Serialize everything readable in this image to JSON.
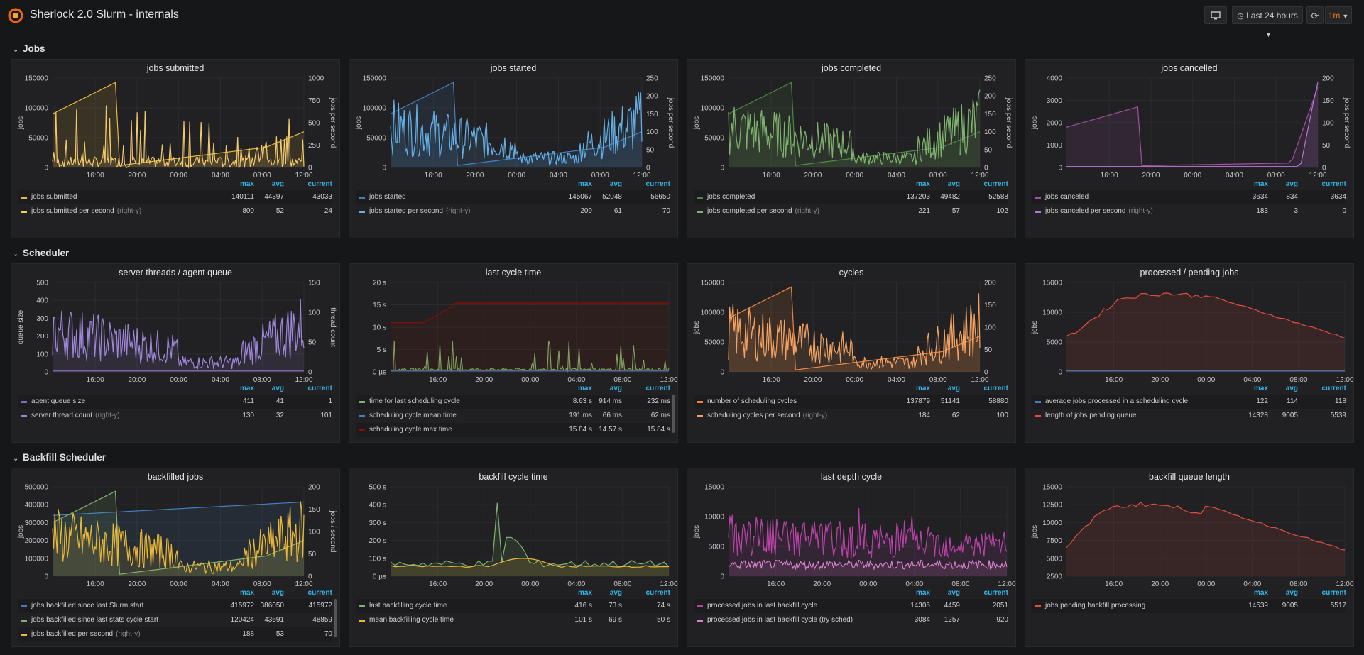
{
  "header": {
    "title": "Sherlock 2.0 Slurm - internals",
    "time_range_label": "Last 24 hours",
    "refresh_interval": "1m",
    "tv_icon": "monitor-icon",
    "refresh_icon": "refresh-icon"
  },
  "colors": {
    "yellow": "#eab839",
    "yellow2": "#f2c96d",
    "blue": "#447ebc",
    "lightblue": "#64b0e6",
    "green": "#508642",
    "lightgreen": "#7eb26d",
    "purple": "#a04fa3",
    "violet": "#b877d9",
    "lavender": "#9e86d8",
    "orange": "#ef843c",
    "red": "#e24d42",
    "darkred": "#890f02",
    "magenta": "#ba43a9",
    "pink": "#d683ce"
  },
  "legend_headers": {
    "max": "max",
    "avg": "avg",
    "current": "current"
  },
  "rows": [
    {
      "title": "Jobs"
    },
    {
      "title": "Scheduler"
    },
    {
      "title": "Backfill Scheduler"
    }
  ],
  "panels": [
    {
      "title": "jobs submitted",
      "chart_data": {
        "type": "line",
        "x_ticks": [
          "16:00",
          "20:00",
          "00:00",
          "04:00",
          "08:00",
          "12:00"
        ],
        "y_left": {
          "label": "jobs",
          "ticks": [
            "0",
            "50000",
            "100000",
            "150000"
          ],
          "range": [
            0,
            150000
          ]
        },
        "y_right": {
          "label": "jobs per second",
          "ticks": [
            "0",
            "250",
            "500",
            "750",
            "1000"
          ],
          "range": [
            0,
            1000
          ]
        },
        "series": [
          {
            "name": "jobs submitted",
            "color": "#eab839",
            "axis": "left",
            "shape": "ramp-then-low-rise",
            "max": 140111,
            "current": 43033
          },
          {
            "name": "jobs submitted per second",
            "color": "#f2c96d",
            "axis": "right",
            "shape": "spiky-sparse",
            "max": 800,
            "current": 24
          }
        ]
      },
      "legend": [
        {
          "label": "jobs submitted",
          "right_y": false,
          "max": "140111",
          "avg": "44397",
          "current": "43033"
        },
        {
          "label": "jobs submitted per second",
          "right_y": true,
          "max": "800",
          "avg": "52",
          "current": "24"
        }
      ]
    },
    {
      "title": "jobs started",
      "chart_data": {
        "type": "line",
        "x_ticks": [
          "16:00",
          "20:00",
          "00:00",
          "04:00",
          "08:00",
          "12:00"
        ],
        "y_left": {
          "label": "jobs",
          "ticks": [
            "0",
            "50000",
            "100000",
            "150000"
          ],
          "range": [
            0,
            150000
          ]
        },
        "y_right": {
          "label": "jobs per second",
          "ticks": [
            "0",
            "50",
            "100",
            "150",
            "200",
            "250"
          ],
          "range": [
            0,
            250
          ]
        },
        "series": [
          {
            "name": "jobs started",
            "color": "#447ebc",
            "axis": "left",
            "shape": "ramp-then-low-rise",
            "max": 145067,
            "current": 56650
          },
          {
            "name": "jobs started per second",
            "color": "#64b0e6",
            "axis": "right",
            "shape": "noisy-dense",
            "max": 209,
            "current": 70
          }
        ]
      },
      "legend": [
        {
          "label": "jobs started",
          "right_y": false,
          "max": "145067",
          "avg": "52048",
          "current": "56650"
        },
        {
          "label": "jobs started per second",
          "right_y": true,
          "max": "209",
          "avg": "61",
          "current": "70"
        }
      ]
    },
    {
      "title": "jobs completed",
      "chart_data": {
        "type": "line",
        "x_ticks": [
          "16:00",
          "20:00",
          "00:00",
          "04:00",
          "08:00",
          "12:00"
        ],
        "y_left": {
          "label": "jobs",
          "ticks": [
            "0",
            "50000",
            "100000",
            "150000"
          ],
          "range": [
            0,
            150000
          ]
        },
        "y_right": {
          "label": "jobs per second",
          "ticks": [
            "0",
            "50",
            "100",
            "150",
            "200",
            "250"
          ],
          "range": [
            0,
            250
          ]
        },
        "series": [
          {
            "name": "jobs completed",
            "color": "#508642",
            "axis": "left",
            "shape": "ramp-then-low-rise",
            "max": 137203,
            "current": 52588
          },
          {
            "name": "jobs completed per second",
            "color": "#7eb26d",
            "axis": "right",
            "shape": "noisy-dense",
            "max": 221,
            "current": 102
          }
        ]
      },
      "legend": [
        {
          "label": "jobs completed",
          "right_y": false,
          "max": "137203",
          "avg": "49482",
          "current": "52588"
        },
        {
          "label": "jobs completed per second",
          "right_y": true,
          "max": "221",
          "avg": "57",
          "current": "102"
        }
      ]
    },
    {
      "title": "jobs cancelled",
      "chart_data": {
        "type": "line",
        "x_ticks": [
          "16:00",
          "20:00",
          "00:00",
          "04:00",
          "08:00",
          "12:00"
        ],
        "y_left": {
          "label": "jobs",
          "ticks": [
            "0",
            "1000",
            "2000",
            "3000",
            "4000"
          ],
          "range": [
            0,
            4000
          ]
        },
        "y_right": {
          "label": "jobs per second",
          "ticks": [
            "0",
            "50",
            "100",
            "150",
            "200"
          ],
          "range": [
            0,
            200
          ]
        },
        "series": [
          {
            "name": "jobs canceled",
            "color": "#a04fa3",
            "axis": "left",
            "shape": "ramp-then-spike-end",
            "max": 3634,
            "current": 3634
          },
          {
            "name": "jobs canceled per second",
            "color": "#b877d9",
            "axis": "right",
            "shape": "flat-spike-end",
            "max": 183,
            "current": 0
          }
        ]
      },
      "legend": [
        {
          "label": "jobs canceled",
          "right_y": false,
          "max": "3634",
          "avg": "834",
          "current": "3634"
        },
        {
          "label": "jobs canceled per second",
          "right_y": true,
          "max": "183",
          "avg": "3",
          "current": "0"
        }
      ]
    },
    {
      "title": "server threads / agent queue",
      "chart_data": {
        "type": "line",
        "x_ticks": [
          "16:00",
          "20:00",
          "00:00",
          "04:00",
          "08:00",
          "12:00"
        ],
        "y_left": {
          "label": "queue size",
          "ticks": [
            "0",
            "100",
            "200",
            "300",
            "400",
            "500"
          ],
          "range": [
            0,
            500
          ]
        },
        "y_right": {
          "label": "thread count",
          "ticks": [
            "0",
            "50",
            "100",
            "150"
          ],
          "range": [
            0,
            150
          ]
        },
        "series": [
          {
            "name": "agent queue size",
            "color": "#806eb7",
            "axis": "left",
            "shape": "flat-low",
            "max": 411,
            "current": 1
          },
          {
            "name": "server thread count",
            "color": "#9e86d8",
            "axis": "right",
            "shape": "noisy-dense",
            "max": 130,
            "current": 101
          }
        ]
      },
      "legend": [
        {
          "label": "agent queue size",
          "right_y": false,
          "max": "411",
          "avg": "41",
          "current": "1"
        },
        {
          "label": "server thread count",
          "right_y": true,
          "max": "130",
          "avg": "32",
          "current": "101"
        }
      ]
    },
    {
      "title": "last cycle time",
      "chart_data": {
        "type": "line",
        "x_ticks": [
          "16:00",
          "20:00",
          "00:00",
          "04:00",
          "08:00",
          "12:00"
        ],
        "y_left": {
          "label": "",
          "ticks": [
            "0 µs",
            "5 s",
            "10 s",
            "15 s",
            "20 s"
          ],
          "range": [
            0,
            20
          ]
        },
        "series": [
          {
            "name": "time for last scheduling cycle",
            "color": "#7eb26d",
            "axis": "left",
            "shape": "low-spiky",
            "max": 8.63,
            "current": 0.232
          },
          {
            "name": "scheduling cycle mean time",
            "color": "#447ebc",
            "axis": "left",
            "shape": "flat-low",
            "max": 0.191,
            "current": 0.062
          },
          {
            "name": "scheduling cycle max time",
            "color": "#890f02",
            "axis": "left",
            "shape": "step-up",
            "max": 15.84,
            "current": 15.84
          }
        ]
      },
      "legend": [
        {
          "label": "time for last scheduling cycle",
          "right_y": false,
          "max": "8.63 s",
          "avg": "914 ms",
          "current": "232 ms"
        },
        {
          "label": "scheduling cycle mean time",
          "right_y": false,
          "max": "191 ms",
          "avg": "66 ms",
          "current": "62 ms"
        },
        {
          "label": "scheduling cycle max time",
          "right_y": false,
          "max": "15.84 s",
          "avg": "14.57 s",
          "current": "15.84 s"
        }
      ]
    },
    {
      "title": "cycles",
      "chart_data": {
        "type": "line",
        "x_ticks": [
          "16:00",
          "20:00",
          "00:00",
          "04:00",
          "08:00",
          "12:00"
        ],
        "y_left": {
          "label": "jobs",
          "ticks": [
            "0",
            "50000",
            "100000",
            "150000"
          ],
          "range": [
            0,
            150000
          ]
        },
        "y_right": {
          "label": "",
          "ticks": [
            "0",
            "50",
            "100",
            "150",
            "200"
          ],
          "range": [
            0,
            200
          ]
        },
        "series": [
          {
            "name": "number of scheduling cycles",
            "color": "#ef843c",
            "axis": "left",
            "shape": "ramp-then-low-rise",
            "max": 137879,
            "current": 58880
          },
          {
            "name": "scheduling cycles per second",
            "color": "#f4a261",
            "axis": "right",
            "shape": "noisy-dense",
            "max": 184,
            "current": 100
          }
        ]
      },
      "legend": [
        {
          "label": "number of scheduling cycles",
          "right_y": false,
          "max": "137879",
          "avg": "51141",
          "current": "58880"
        },
        {
          "label": "scheduling cycles per second",
          "right_y": true,
          "max": "184",
          "avg": "62",
          "current": "100"
        }
      ]
    },
    {
      "title": "processed / pending jobs",
      "chart_data": {
        "type": "line",
        "x_ticks": [
          "16:00",
          "20:00",
          "00:00",
          "04:00",
          "08:00",
          "12:00"
        ],
        "y_left": {
          "label": "jobs",
          "ticks": [
            "0",
            "5000",
            "10000",
            "15000"
          ],
          "range": [
            0,
            15000
          ]
        },
        "series": [
          {
            "name": "average jobs processed in a scheduling cycle",
            "color": "#447ebc",
            "axis": "left",
            "shape": "flat-low",
            "max": 122,
            "current": 118
          },
          {
            "name": "length of jobs pending queue",
            "color": "#e24d42",
            "axis": "left",
            "shape": "hump",
            "max": 14328,
            "current": 5539
          }
        ]
      },
      "legend": [
        {
          "label": "average jobs processed in a scheduling cycle",
          "right_y": false,
          "max": "122",
          "avg": "114",
          "current": "118"
        },
        {
          "label": "length of jobs pending queue",
          "right_y": false,
          "max": "14328",
          "avg": "9005",
          "current": "5539"
        }
      ]
    },
    {
      "title": "backfilled jobs",
      "chart_data": {
        "type": "line",
        "x_ticks": [
          "16:00",
          "20:00",
          "00:00",
          "04:00",
          "08:00",
          "12:00"
        ],
        "y_left": {
          "label": "jobs",
          "ticks": [
            "0",
            "100000",
            "200000",
            "300000",
            "400000",
            "500000"
          ],
          "range": [
            0,
            500000
          ]
        },
        "y_right": {
          "label": "jobs / second",
          "ticks": [
            "0",
            "50",
            "100",
            "150",
            "200"
          ],
          "range": [
            0,
            200
          ]
        },
        "series": [
          {
            "name": "jobs backfilled since last Slurm start",
            "color": "#447ebc",
            "axis": "left",
            "shape": "slow-rise-high",
            "max": 415972,
            "current": 415972
          },
          {
            "name": "jobs backfilled since last stats cycle start",
            "color": "#7eb26d",
            "axis": "left",
            "shape": "ramp-then-low-rise",
            "max": 120424,
            "current": 48859
          },
          {
            "name": "jobs backfilled per second",
            "color": "#eab839",
            "axis": "right",
            "shape": "noisy-dense",
            "max": 188,
            "current": 70
          }
        ]
      },
      "legend": [
        {
          "label": "jobs backfilled since last Slurm start",
          "right_y": false,
          "max": "415972",
          "avg": "386050",
          "current": "415972"
        },
        {
          "label": "jobs backfilled since last stats cycle start",
          "right_y": false,
          "max": "120424",
          "avg": "43691",
          "current": "48859"
        },
        {
          "label": "jobs backfilled per second",
          "right_y": true,
          "max": "188",
          "avg": "53",
          "current": "70"
        }
      ]
    },
    {
      "title": "backfill cycle time",
      "chart_data": {
        "type": "line",
        "x_ticks": [
          "16:00",
          "20:00",
          "00:00",
          "04:00",
          "08:00",
          "12:00"
        ],
        "y_left": {
          "label": "",
          "ticks": [
            "0 µs",
            "100 s",
            "200 s",
            "300 s",
            "400 s",
            "500 s"
          ],
          "range": [
            0,
            500
          ]
        },
        "series": [
          {
            "name": "last backfilling cycle time",
            "color": "#7eb26d",
            "axis": "left",
            "shape": "low-with-peak",
            "max": 416,
            "current": 74
          },
          {
            "name": "mean backfilling cycle time",
            "color": "#eab839",
            "axis": "left",
            "shape": "low-bump",
            "max": 101,
            "current": 50
          }
        ]
      },
      "legend": [
        {
          "label": "last backfilling cycle time",
          "right_y": false,
          "max": "416 s",
          "avg": "73 s",
          "current": "74 s"
        },
        {
          "label": "mean backfilling cycle time",
          "right_y": false,
          "max": "101 s",
          "avg": "69 s",
          "current": "50 s"
        }
      ]
    },
    {
      "title": "last depth cycle",
      "chart_data": {
        "type": "line",
        "x_ticks": [
          "16:00",
          "20:00",
          "00:00",
          "04:00",
          "08:00",
          "12:00"
        ],
        "y_left": {
          "label": "jobs",
          "ticks": [
            "0",
            "5000",
            "10000",
            "15000"
          ],
          "range": [
            0,
            15000
          ]
        },
        "series": [
          {
            "name": "processed jobs in last backfill cycle",
            "color": "#ba43a9",
            "axis": "left",
            "shape": "noisy-mid",
            "max": 14305,
            "current": 2051
          },
          {
            "name": "processed jobs in last backfill cycle (try sched)",
            "color": "#d683ce",
            "axis": "left",
            "shape": "noisy-low",
            "max": 3084,
            "current": 920
          }
        ]
      },
      "legend": [
        {
          "label": "processed jobs in last backfill cycle",
          "right_y": false,
          "max": "14305",
          "avg": "4459",
          "current": "2051"
        },
        {
          "label": "processed jobs in last backfill cycle (try sched)",
          "right_y": false,
          "max": "3084",
          "avg": "1257",
          "current": "920"
        }
      ]
    },
    {
      "title": "backfill queue length",
      "chart_data": {
        "type": "line",
        "x_ticks": [
          "16:00",
          "20:00",
          "00:00",
          "04:00",
          "08:00",
          "12:00"
        ],
        "y_left": {
          "label": "jobs",
          "ticks": [
            "2500",
            "5000",
            "7500",
            "10000",
            "12500",
            "15000"
          ],
          "range": [
            2500,
            15000
          ]
        },
        "series": [
          {
            "name": "jobs pending backfill processing",
            "color": "#e24d42",
            "axis": "left",
            "shape": "hump-dip",
            "max": 14539,
            "current": 5517
          }
        ]
      },
      "legend": [
        {
          "label": "jobs pending backfill processing",
          "right_y": false,
          "max": "14539",
          "avg": "9005",
          "current": "5517"
        }
      ]
    }
  ]
}
